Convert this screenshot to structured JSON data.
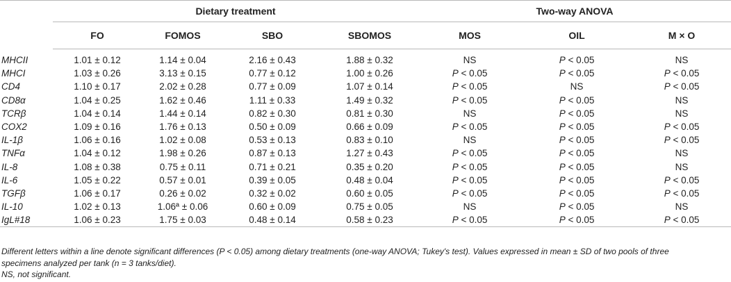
{
  "header": {
    "group_dietary": "Dietary treatment",
    "group_anova": "Two-way ANOVA",
    "columns": [
      "FO",
      "FOMOS",
      "SBO",
      "SBOMOS",
      "MOS",
      "OIL",
      "M × O"
    ]
  },
  "rows": [
    {
      "gene": "MHCII",
      "c": [
        "1.01 ± 0.12",
        "1.14 ± 0.04",
        "2.16 ± 0.43",
        "1.88 ± 0.32",
        "NS",
        "P < 0.05",
        "NS"
      ]
    },
    {
      "gene": "MHCI",
      "c": [
        "1.03 ± 0.26",
        "3.13 ± 0.15",
        "0.77 ± 0.12",
        "1.00 ± 0.26",
        "P < 0.05",
        "P < 0.05",
        "P < 0.05"
      ]
    },
    {
      "gene": "CD4",
      "c": [
        "1.10 ± 0.17",
        "2.02 ± 0.28",
        "0.77 ± 0.09",
        "1.07 ± 0.14",
        "P < 0.05",
        "NS",
        "P < 0.05"
      ]
    },
    {
      "gene": "CD8α",
      "c": [
        "1.04 ± 0.25",
        "1.62 ± 0.46",
        "1.11 ± 0.33",
        "1.49 ± 0.32",
        "P < 0.05",
        "P < 0.05",
        "NS"
      ]
    },
    {
      "gene": "TCRβ",
      "c": [
        "1.04 ± 0.14",
        "1.44 ± 0.14",
        "0.82 ± 0.30",
        "0.81 ± 0.30",
        "NS",
        "P < 0.05",
        "NS"
      ]
    },
    {
      "gene": "COX2",
      "c": [
        "1.09 ± 0.16",
        "1.76 ± 0.13",
        "0.50 ± 0.09",
        "0.66 ± 0.09",
        "P < 0.05",
        "P < 0.05",
        "P < 0.05"
      ]
    },
    {
      "gene": "IL-1β",
      "c": [
        "1.06 ± 0.16",
        "1.02 ± 0.08",
        "0.53 ± 0.13",
        "0.83 ± 0.10",
        "NS",
        "P < 0.05",
        "P < 0.05"
      ]
    },
    {
      "gene": "TNFα",
      "c": [
        "1.04 ± 0.12",
        "1.98 ± 0.26",
        "0.87 ± 0.13",
        "1.27 ± 0.43",
        "P < 0.05",
        "P < 0.05",
        "NS"
      ]
    },
    {
      "gene": "IL-8",
      "c": [
        "1.08 ± 0.38",
        "0.75 ± 0.11",
        "0.71 ± 0.21",
        "0.35 ± 0.20",
        "P < 0.05",
        "P < 0.05",
        "NS"
      ]
    },
    {
      "gene": "IL-6",
      "c": [
        "1.05 ± 0.22",
        "0.57 ± 0.01",
        "0.39 ± 0.05",
        "0.48 ± 0.04",
        "P < 0.05",
        "P < 0.05",
        "P < 0.05"
      ]
    },
    {
      "gene": "TGFβ",
      "c": [
        "1.06 ± 0.17",
        "0.26 ± 0.02",
        "0.32 ± 0.02",
        "0.60 ± 0.05",
        "P < 0.05",
        "P < 0.05",
        "P < 0.05"
      ]
    },
    {
      "gene": "IL-10",
      "c": [
        "1.02 ± 0.13",
        "1.06ª ± 0.06",
        "0.60 ± 0.09",
        "0.75 ± 0.05",
        "NS",
        "P < 0.05",
        "NS"
      ]
    },
    {
      "gene": "IgL#18",
      "c": [
        "1.06 ± 0.23",
        "1.75 ± 0.03",
        "0.48 ± 0.14",
        "0.58 ± 0.23",
        "P < 0.05",
        "P < 0.05",
        "P < 0.05"
      ]
    }
  ],
  "footnotes": {
    "line1": "Different letters within a line denote significant differences (P < 0.05) among dietary treatments (one-way ANOVA; Tukey's test). Values expressed in mean ± SD of two pools of three",
    "line2": "specimens analyzed per tank (n = 3 tanks/diet).",
    "line3": "NS, not significant."
  }
}
